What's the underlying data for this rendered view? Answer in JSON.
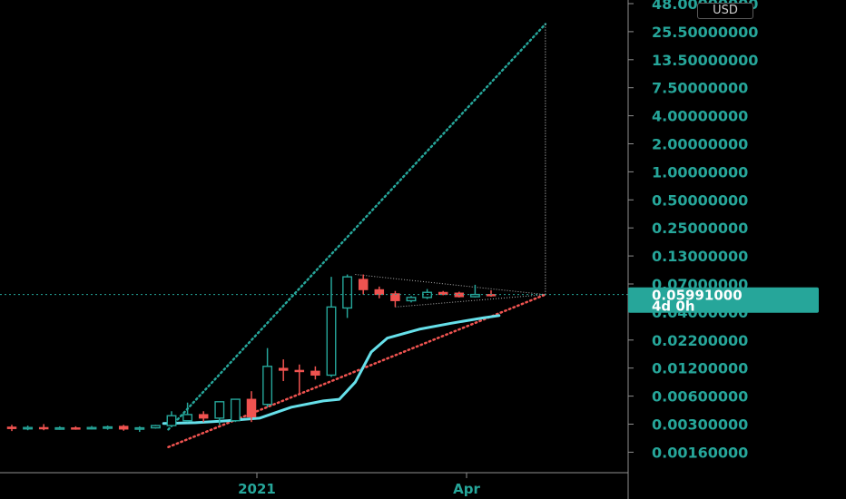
{
  "currency": "USD",
  "price_label": {
    "value": "0.05991000",
    "countdown": "4d 0h"
  },
  "colors": {
    "background": "#000000",
    "axis_line": "#8f8f8f",
    "tick_text": "#26a69a",
    "up": "#26a69a",
    "down": "#ef5350",
    "ma_line": "#66e0ea",
    "upper_trend": "#26a69a",
    "lower_trend": "#ef5350",
    "triangle": "#b0b0b0",
    "price_line": "#26a69a",
    "price_tag_bg": "#26a69a",
    "price_tag_text": "#ffffff",
    "time_axis_text": "#26a69a"
  },
  "chart_data": {
    "type": "candlestick",
    "y_scale": "log",
    "y_ticks": [
      "48.00000000",
      "25.50000000",
      "13.50000000",
      "7.50000000",
      "4.00000000",
      "2.00000000",
      "1.00000000",
      "0.50000000",
      "0.25000000",
      "0.13000000",
      "0.07000000",
      "0.04000000",
      "0.02200000",
      "0.01200000",
      "0.00600000",
      "0.00300000",
      "0.00160000"
    ],
    "x_ticks": [
      "2021",
      "Apr"
    ],
    "current_price": 0.05991,
    "candles": [
      {
        "o": 0.00285,
        "h": 0.003,
        "l": 0.0026,
        "c": 0.00275
      },
      {
        "o": 0.00275,
        "h": 0.00295,
        "l": 0.00265,
        "c": 0.00282
      },
      {
        "o": 0.00282,
        "h": 0.00305,
        "l": 0.00265,
        "c": 0.00278
      },
      {
        "o": 0.00278,
        "h": 0.0029,
        "l": 0.00268,
        "c": 0.0028
      },
      {
        "o": 0.0028,
        "h": 0.0029,
        "l": 0.00268,
        "c": 0.00276
      },
      {
        "o": 0.00276,
        "h": 0.00292,
        "l": 0.0027,
        "c": 0.00282
      },
      {
        "o": 0.00282,
        "h": 0.00295,
        "l": 0.00268,
        "c": 0.00286
      },
      {
        "o": 0.0029,
        "h": 0.003,
        "l": 0.00262,
        "c": 0.00272
      },
      {
        "o": 0.00272,
        "h": 0.0029,
        "l": 0.00255,
        "c": 0.0028
      },
      {
        "o": 0.0028,
        "h": 0.003,
        "l": 0.00275,
        "c": 0.00295
      },
      {
        "o": 0.00295,
        "h": 0.0041,
        "l": 0.00285,
        "c": 0.0037
      },
      {
        "o": 0.0033,
        "h": 0.005,
        "l": 0.0032,
        "c": 0.0038
      },
      {
        "o": 0.0038,
        "h": 0.0041,
        "l": 0.0032,
        "c": 0.0035
      },
      {
        "o": 0.0035,
        "h": 0.0043,
        "l": 0.003,
        "c": 0.0051
      },
      {
        "o": 0.0033,
        "h": 0.0054,
        "l": 0.0032,
        "c": 0.0054
      },
      {
        "o": 0.0054,
        "h": 0.0065,
        "l": 0.0032,
        "c": 0.0036
      },
      {
        "o": 0.0048,
        "h": 0.0175,
        "l": 0.0045,
        "c": 0.0115
      },
      {
        "o": 0.011,
        "h": 0.0135,
        "l": 0.0082,
        "c": 0.0105
      },
      {
        "o": 0.0105,
        "h": 0.012,
        "l": 0.006,
        "c": 0.0103
      },
      {
        "o": 0.0103,
        "h": 0.0115,
        "l": 0.0085,
        "c": 0.0094
      },
      {
        "o": 0.0094,
        "h": 0.09,
        "l": 0.009,
        "c": 0.045
      },
      {
        "o": 0.044,
        "h": 0.095,
        "l": 0.035,
        "c": 0.09
      },
      {
        "o": 0.085,
        "h": 0.095,
        "l": 0.06,
        "c": 0.067
      },
      {
        "o": 0.067,
        "h": 0.072,
        "l": 0.055,
        "c": 0.06
      },
      {
        "o": 0.061,
        "h": 0.065,
        "l": 0.045,
        "c": 0.052
      },
      {
        "o": 0.052,
        "h": 0.058,
        "l": 0.05,
        "c": 0.056
      },
      {
        "o": 0.056,
        "h": 0.068,
        "l": 0.054,
        "c": 0.063
      },
      {
        "o": 0.063,
        "h": 0.065,
        "l": 0.059,
        "c": 0.06
      },
      {
        "o": 0.062,
        "h": 0.064,
        "l": 0.056,
        "c": 0.057
      },
      {
        "o": 0.057,
        "h": 0.075,
        "l": 0.056,
        "c": 0.06
      },
      {
        "o": 0.06,
        "h": 0.066,
        "l": 0.057,
        "c": 0.05991
      }
    ],
    "moving_average": [
      {
        "i": 9.5,
        "v": 0.0031
      },
      {
        "i": 11.5,
        "v": 0.00315
      },
      {
        "i": 13.5,
        "v": 0.0033
      },
      {
        "i": 15.5,
        "v": 0.0035
      },
      {
        "i": 17.5,
        "v": 0.0045
      },
      {
        "i": 19.5,
        "v": 0.0052
      },
      {
        "i": 20.5,
        "v": 0.0054
      },
      {
        "i": 21.5,
        "v": 0.008
      },
      {
        "i": 22.5,
        "v": 0.016
      },
      {
        "i": 23.5,
        "v": 0.022
      },
      {
        "i": 25.5,
        "v": 0.027
      },
      {
        "i": 27.5,
        "v": 0.031
      },
      {
        "i": 29.5,
        "v": 0.035
      },
      {
        "i": 30.5,
        "v": 0.037
      }
    ],
    "upper_trendline": [
      {
        "i": 9.8,
        "v": 0.0027
      },
      {
        "i": 33.4,
        "v": 30.0
      }
    ],
    "lower_trendline": [
      {
        "i": 9.8,
        "v": 0.0018
      },
      {
        "i": 33.4,
        "v": 0.05991
      }
    ],
    "vertical_projection": {
      "i": 33.4,
      "from": 0.05991,
      "to": 30.0
    },
    "triangle": {
      "apex": {
        "i": 33.4,
        "v": 0.05991
      },
      "top": {
        "i": 21.5,
        "v": 0.095
      },
      "bottom": {
        "i": 24.0,
        "v": 0.045
      }
    }
  }
}
